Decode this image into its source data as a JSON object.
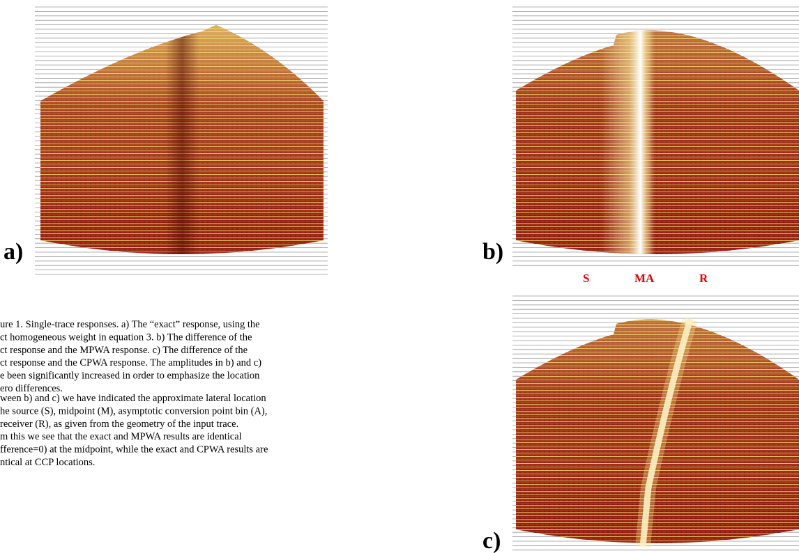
{
  "panels": [
    {
      "label": "a)"
    },
    {
      "label": "b)"
    },
    {
      "label": "c)"
    }
  ],
  "annotations": [
    "S",
    "MA",
    "R"
  ],
  "caption": {
    "paragraphs": [
      [
        "ure 1. Single-trace responses.  a) The “exact” response, using the",
        "ct homogeneous weight in equation 3.  b) The difference of the",
        "ct response and the MPWA response. c) The difference of the",
        "ct response and the CPWA response.  The amplitudes in b) and c)",
        "e been significantly increased in order to emphasize the location",
        "ero differences."
      ],
      [
        "ween b) and c) we have indicated the approximate lateral location",
        "he source (S), midpoint (M), asymptotic conversion point bin (A),",
        "receiver (R), as given from the geometry of the input trace.",
        "m this we see that the exact and MPWA results are identical",
        "fference=0) at the midpoint, while the exact and CPWA results are",
        "ntical at CCP locations."
      ]
    ]
  }
}
